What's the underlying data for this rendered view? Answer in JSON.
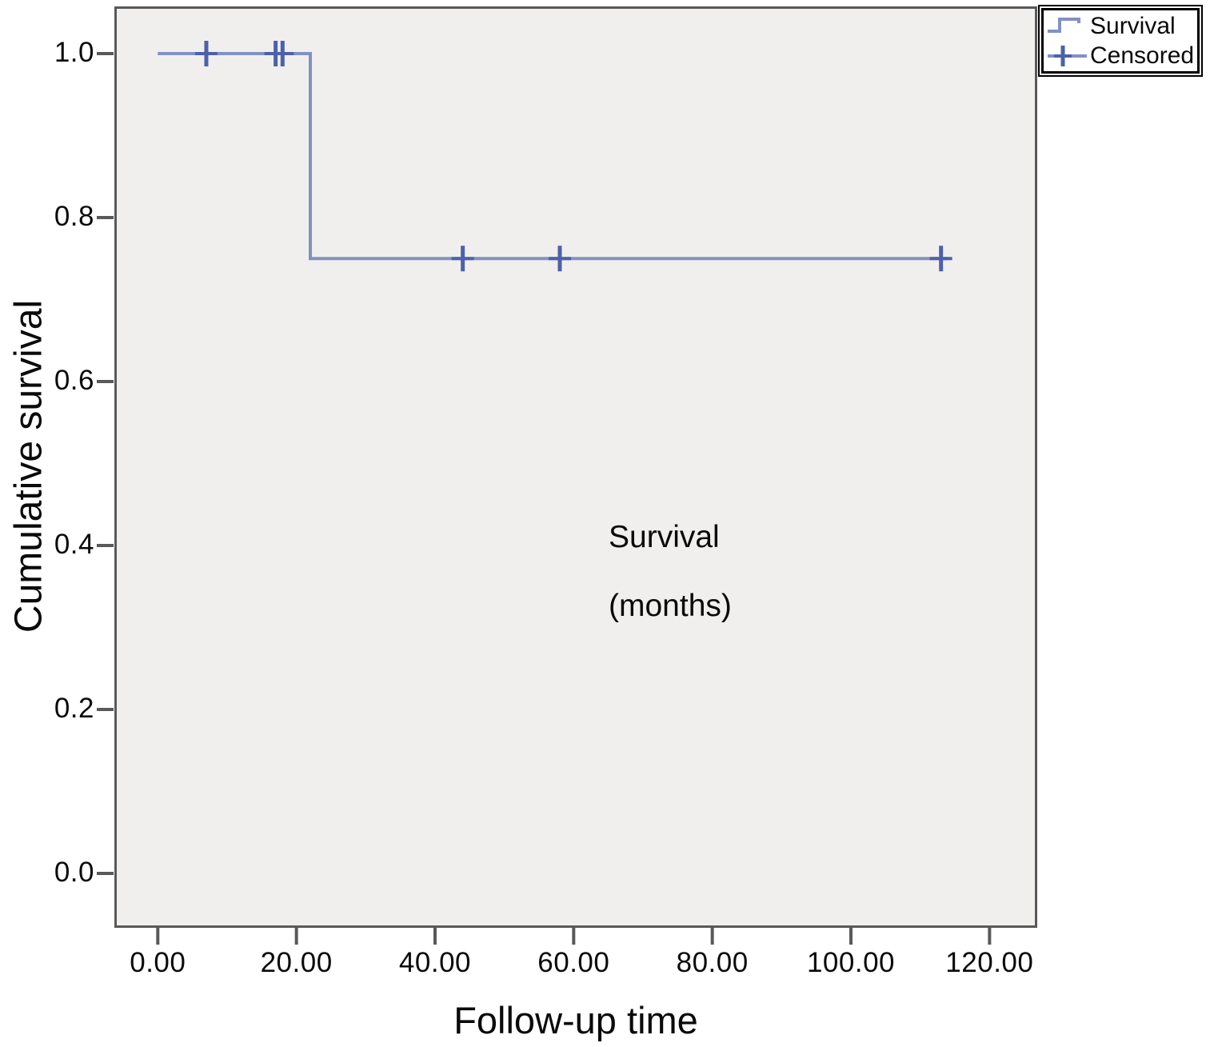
{
  "figure": {
    "background_color": "#ffffff",
    "plot_background_color": "#f0efed",
    "frame_color": "#59595b",
    "survival_line_color": "#8191c4",
    "censor_mark_color": "#4d61aa",
    "text_color": "#0a0a0a",
    "xlabel": "Follow-up time",
    "ylabel": "Cumulative survival",
    "annotation_line1": "Survival",
    "annotation_line2": "(months)",
    "legend": {
      "items": [
        {
          "label": "Survival",
          "icon": "step-line-icon"
        },
        {
          "label": "Censored",
          "icon": "plus-line-icon"
        }
      ]
    }
  },
  "chart_data": {
    "type": "line",
    "subtype": "kaplan-meier-step",
    "title": "",
    "xlabel": "Follow-up time",
    "ylabel": "Cumulative survival",
    "x_tick_labels": [
      "0.00",
      "20.00",
      "40.00",
      "60.00",
      "80.00",
      "100.00",
      "120.00"
    ],
    "x_tick_values": [
      0,
      20,
      40,
      60,
      80,
      100,
      120
    ],
    "y_tick_labels": [
      "0.0",
      "0.2",
      "0.4",
      "0.6",
      "0.8",
      "1.0"
    ],
    "y_tick_values": [
      0,
      0.2,
      0.4,
      0.6,
      0.8,
      1.0
    ],
    "xlim": [
      -6.2,
      126.9
    ],
    "ylim": [
      -0.064,
      1.057
    ],
    "grid": false,
    "legend_position": "top-right",
    "annotation": "Survival (months)",
    "series": [
      {
        "name": "Survival",
        "type": "step",
        "points": [
          [
            0,
            1.0
          ],
          [
            22,
            1.0
          ],
          [
            22,
            0.75
          ],
          [
            114,
            0.75
          ]
        ]
      }
    ],
    "censored_points": [
      [
        7,
        1.0
      ],
      [
        17,
        1.0
      ],
      [
        18,
        1.0
      ],
      [
        44,
        0.75
      ],
      [
        58,
        0.75
      ],
      [
        113,
        0.75
      ]
    ]
  }
}
